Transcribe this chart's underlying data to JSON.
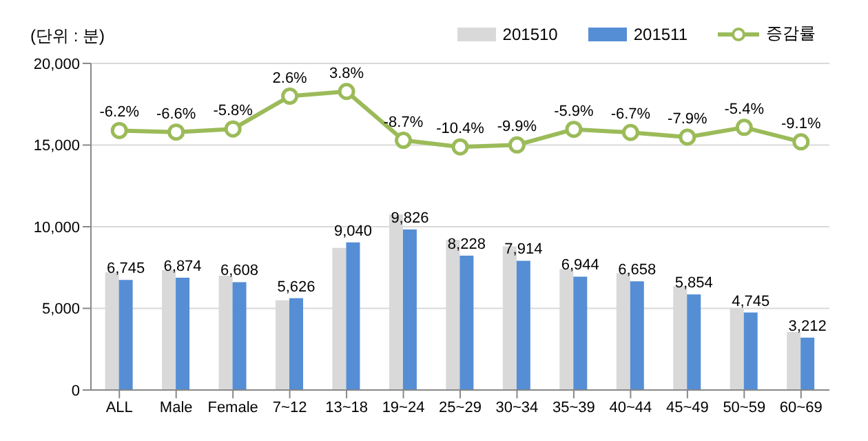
{
  "chart_data": {
    "type": "bar",
    "ylabel": "(단위 : 분)",
    "categories": [
      "ALL",
      "Male",
      "Female",
      "7~12",
      "13~18",
      "19~24",
      "25~29",
      "30~34",
      "35~39",
      "40~44",
      "45~49",
      "50~59",
      "60~69"
    ],
    "series": [
      {
        "name": "201510",
        "color": "#d9d9d9",
        "values": [
          7200,
          7350,
          7000,
          5500,
          8700,
          10750,
          9200,
          8800,
          7400,
          7150,
          6350,
          5000,
          3550
        ]
      },
      {
        "name": "201511",
        "color": "#558ed5",
        "values": [
          6745,
          6874,
          6608,
          5626,
          9040,
          9826,
          8228,
          7914,
          6944,
          6658,
          5854,
          4745,
          3212
        ],
        "value_labels": [
          "6,745",
          "6,874",
          "6,608",
          "5,626",
          "9,040",
          "9,826",
          "8,228",
          "7,914",
          "6,944",
          "6,658",
          "5,854",
          "4,745",
          "3,212"
        ]
      },
      {
        "name": "증감률",
        "type": "line",
        "axis": "y2",
        "color": "#9bbb59",
        "marker": "circle",
        "values": [
          -6.2,
          -6.6,
          -5.8,
          2.6,
          3.8,
          -8.7,
          -10.4,
          -9.9,
          -5.9,
          -6.7,
          -7.9,
          -5.4,
          -9.1
        ],
        "value_labels": [
          "-6.2%",
          "-6.6%",
          "-5.8%",
          "2.6%",
          "3.8%",
          "-8.7%",
          "-10.4%",
          "-9.9%",
          "-5.9%",
          "-6.7%",
          "-7.9%",
          "-5.4%",
          "-9.1%"
        ]
      }
    ],
    "ylim": [
      0,
      20000
    ],
    "yticks": [
      {
        "value": 0,
        "label": "0"
      },
      {
        "value": 5000,
        "label": "5,000"
      },
      {
        "value": 10000,
        "label": "10,000"
      },
      {
        "value": 15000,
        "label": "15,000"
      },
      {
        "value": 20000,
        "label": "20,000"
      }
    ],
    "y2lim": [
      -72.7,
      11
    ],
    "tick_labels": [
      "x",
      "y"
    ],
    "grid": "y",
    "legend": "top right"
  }
}
